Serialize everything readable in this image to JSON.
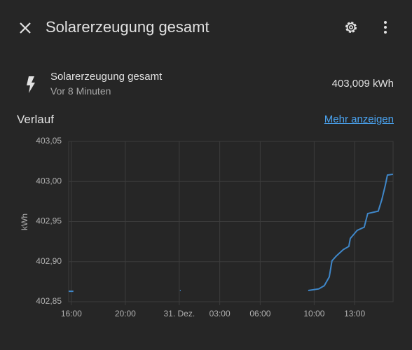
{
  "header": {
    "title": "Solarerzeugung gesamt"
  },
  "entity": {
    "name": "Solarerzeugung gesamt",
    "last_changed": "Vor 8 Minuten",
    "state": "403,009 kWh"
  },
  "history": {
    "title": "Verlauf",
    "link": "Mehr anzeigen"
  },
  "chart_data": {
    "type": "line",
    "y_label": "kWh",
    "color": "#3f87c9",
    "grid": true,
    "x": [
      15.8,
      16.15,
      null,
      24.05,
      24.1,
      null,
      33.56,
      34.34,
      34.75,
      35.12,
      35.32,
      35.64,
      36.16,
      36.57,
      36.68,
      37.19,
      37.71,
      37.97,
      38.75,
      39.01,
      39.27,
      39.43,
      39.84
    ],
    "values": [
      402.863,
      402.863,
      null,
      402.864,
      402.864,
      null,
      402.864,
      402.866,
      402.87,
      402.881,
      402.901,
      402.907,
      402.915,
      402.919,
      402.929,
      402.939,
      402.943,
      402.96,
      402.963,
      402.977,
      402.995,
      403.008,
      403.009
    ],
    "xlim": [
      15.8,
      39.85
    ],
    "xticks": [
      {
        "value": 16,
        "label": "16:00"
      },
      {
        "value": 20,
        "label": "20:00"
      },
      {
        "value": 24,
        "label": "31. Dez."
      },
      {
        "value": 27,
        "label": "03:00"
      },
      {
        "value": 30,
        "label": "06:00"
      },
      {
        "value": 34,
        "label": "10:00"
      },
      {
        "value": 37,
        "label": "13:00"
      }
    ],
    "ylim": [
      402.85,
      403.05
    ],
    "yticks": [
      {
        "value": 402.85,
        "label": "402,85"
      },
      {
        "value": 402.9,
        "label": "402,90"
      },
      {
        "value": 402.95,
        "label": "402,95"
      },
      {
        "value": 403.0,
        "label": "403,00"
      },
      {
        "value": 403.05,
        "label": "403,05"
      }
    ]
  }
}
